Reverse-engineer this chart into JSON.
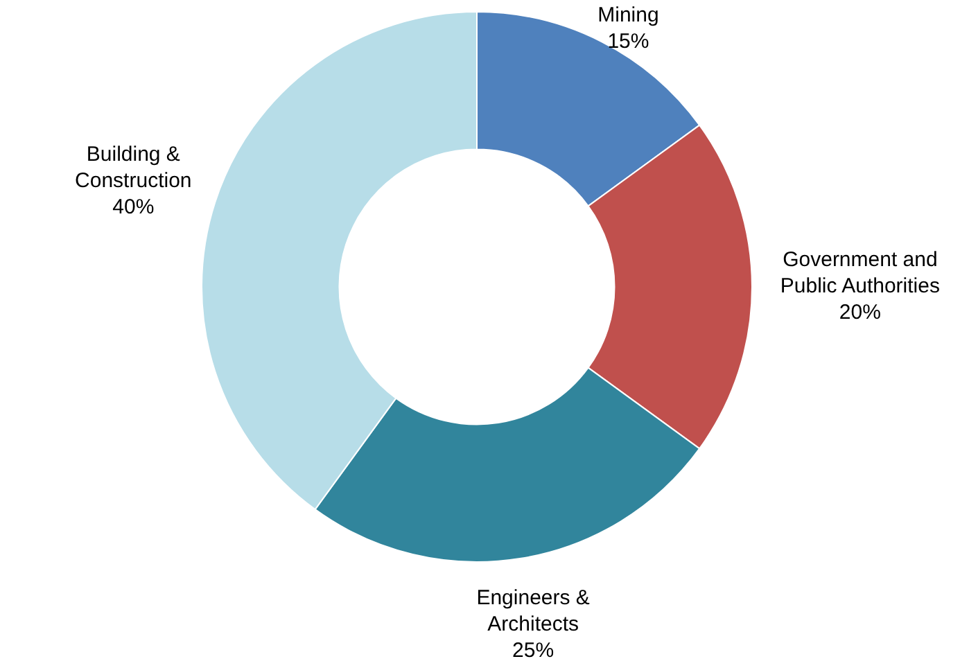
{
  "chart_data": {
    "type": "donut",
    "categories": [
      "Mining",
      "Government and Public Authorities",
      "Engineers & Architects",
      "Building & Construction"
    ],
    "values": [
      15,
      20,
      25,
      40
    ],
    "value_labels": [
      "15%",
      "20%",
      "25%",
      "40%"
    ],
    "colors": [
      "#4f81bd",
      "#c0504d",
      "#31859c",
      "#b7dde8"
    ],
    "legend": false
  }
}
